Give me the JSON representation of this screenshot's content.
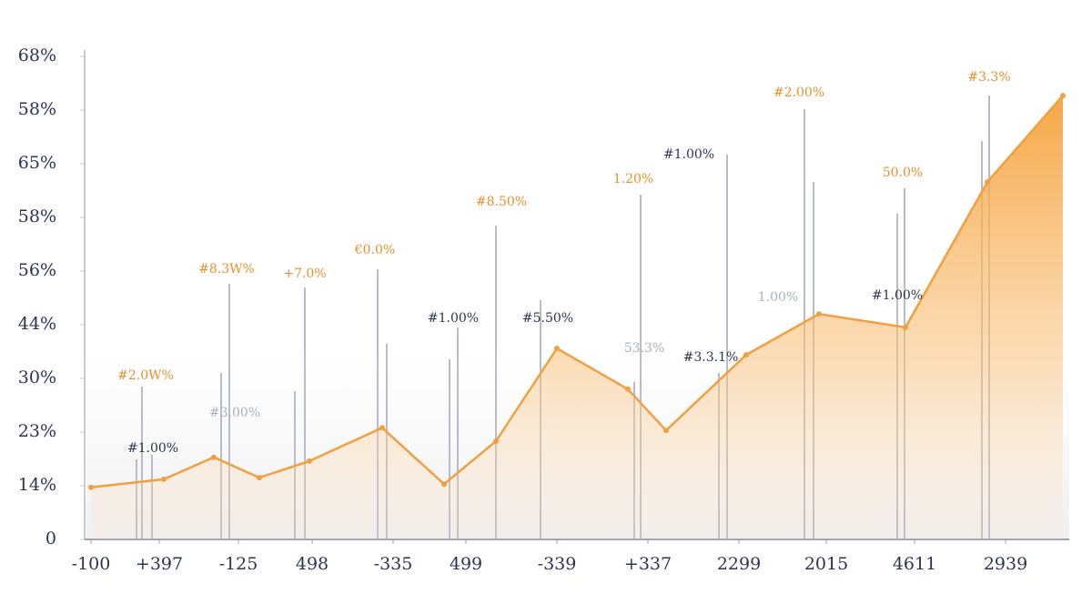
{
  "chart_data": {
    "type": "area",
    "x": [
      0.5,
      8.5,
      14,
      19,
      24.5,
      32.5,
      39.3,
      45,
      51.7,
      59.5,
      63.7,
      72.5,
      80.5,
      90,
      99,
      107.3
    ],
    "series": [
      {
        "color": "#f0a040",
        "values": [
          9.7,
          11.2,
          15.3,
          11.5,
          14.6,
          20.8,
          10.3,
          18.3,
          35.6,
          28,
          20.3,
          34.4,
          42,
          39.5,
          66.6,
          82.7
        ]
      }
    ],
    "xlim": [
      0,
      108
    ],
    "xticks": [
      {
        "value": 0.5,
        "label": "-100"
      },
      {
        "value": 8,
        "label": "+397"
      },
      {
        "value": 16.7,
        "label": "-125"
      },
      {
        "value": 24.8,
        "label": "498"
      },
      {
        "value": 33.7,
        "label": "-335"
      },
      {
        "value": 41.7,
        "label": "499"
      },
      {
        "value": 51.7,
        "label": "-339"
      },
      {
        "value": 61.7,
        "label": "+337"
      },
      {
        "value": 71.7,
        "label": "2299"
      },
      {
        "value": 81.3,
        "label": "2015"
      },
      {
        "value": 91,
        "label": "4611"
      },
      {
        "value": 101,
        "label": "2939"
      }
    ],
    "ylim": [
      0,
      90
    ],
    "yticks": [
      0,
      {
        "value": 10,
        "label": "14%"
      },
      {
        "value": 20,
        "label": "23%"
      },
      {
        "value": 30,
        "label": "30%"
      },
      {
        "value": 40,
        "label": "44%"
      },
      {
        "value": 50,
        "label": "56%"
      },
      {
        "value": 60,
        "label": "58%"
      },
      {
        "value": 70,
        "label": "65%"
      },
      {
        "value": 80,
        "label": "58%"
      },
      {
        "value": 90,
        "label": "68%"
      }
    ],
    "annotations": [
      "#2.0W%",
      "#1.00%",
      "#3.00%",
      "#8.3W%",
      "+7.0%",
      "€0.0%",
      "#1.00%",
      "#8.50%",
      "#5.50%",
      "53.3%",
      "#3.3.1%",
      "1.20%",
      "#1.00%",
      "#2.00%",
      "1.00%",
      "#1.00%",
      "50.0%",
      "#3.3%"
    ]
  }
}
